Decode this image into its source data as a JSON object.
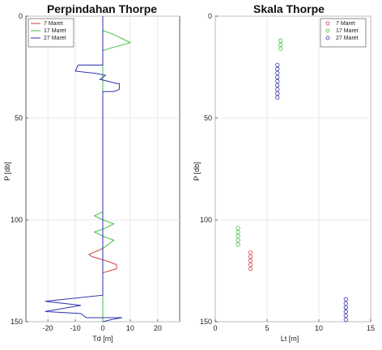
{
  "chart_data": [
    {
      "type": "line",
      "title": "Perpindahan Thorpe",
      "xlabel": "Td [m]",
      "ylabel": "P [db]",
      "xlim": [
        -28,
        28
      ],
      "ylim": [
        150,
        0
      ],
      "y_reversed": true,
      "grid": true,
      "legend_position": "top-left",
      "xticks": [
        -20,
        -10,
        0,
        10,
        20
      ],
      "yticks": [
        0,
        50,
        100,
        150
      ],
      "series": [
        {
          "name": "7 Maret",
          "color": "#d04040",
          "points": [
            [
              0,
              0
            ],
            [
              0,
              114
            ],
            [
              -5,
              117
            ],
            [
              -4,
              118
            ],
            [
              1,
              120
            ],
            [
              5,
              122
            ],
            [
              5,
              124
            ],
            [
              0,
              126
            ],
            [
              0,
              150
            ]
          ]
        },
        {
          "name": "17 Maret",
          "color": "#40c040",
          "points": [
            [
              0,
              0
            ],
            [
              0,
              7
            ],
            [
              4,
              9
            ],
            [
              10,
              13
            ],
            [
              2,
              16
            ],
            [
              0,
              17
            ],
            [
              0,
              96
            ],
            [
              -3,
              98
            ],
            [
              0,
              100
            ],
            [
              4,
              102
            ],
            [
              1,
              104
            ],
            [
              -3,
              106
            ],
            [
              0,
              108
            ],
            [
              4,
              110
            ],
            [
              0,
              114
            ],
            [
              0,
              150
            ]
          ]
        },
        {
          "name": "27 Maret",
          "color": "#3030b0",
          "points": [
            [
              0,
              0
            ],
            [
              0,
              24
            ],
            [
              -9,
              24
            ],
            [
              -10,
              27
            ],
            [
              -3,
              28
            ],
            [
              1,
              29
            ],
            [
              -1,
              31
            ],
            [
              2,
              32
            ],
            [
              5,
              33
            ],
            [
              6,
              33
            ],
            [
              6,
              36
            ],
            [
              4,
              37
            ],
            [
              0,
              37
            ],
            [
              0,
              137
            ],
            [
              -21,
              140
            ],
            [
              -8,
              142
            ],
            [
              -21,
              145
            ],
            [
              -8,
              146
            ],
            [
              -6,
              148
            ],
            [
              7,
              148
            ],
            [
              3,
              149
            ],
            [
              0,
              150
            ]
          ]
        }
      ]
    },
    {
      "type": "scatter",
      "title": "Skala Thorpe",
      "xlabel": "Lt [m]",
      "ylabel": "P [db]",
      "xlim": [
        0,
        15
      ],
      "ylim": [
        150,
        0
      ],
      "y_reversed": true,
      "grid": true,
      "legend_position": "top-right",
      "xticks": [
        0,
        5,
        10,
        15
      ],
      "yticks": [
        0,
        50,
        100,
        150
      ],
      "series": [
        {
          "name": "7 Maret",
          "color": "#d04040",
          "points": [
            [
              3.4,
              116
            ],
            [
              3.4,
              118
            ],
            [
              3.4,
              120
            ],
            [
              3.4,
              122
            ],
            [
              3.4,
              124
            ]
          ]
        },
        {
          "name": "17 Maret",
          "color": "#40c040",
          "points": [
            [
              6.3,
              12
            ],
            [
              6.3,
              14
            ],
            [
              6.3,
              16
            ],
            [
              2.2,
              104
            ],
            [
              2.2,
              106
            ],
            [
              2.2,
              108
            ],
            [
              2.2,
              110
            ],
            [
              2.2,
              112
            ]
          ]
        },
        {
          "name": "27 Maret",
          "color": "#3030b0",
          "points": [
            [
              6,
              24
            ],
            [
              6,
              26
            ],
            [
              6,
              28
            ],
            [
              6,
              30
            ],
            [
              6,
              32
            ],
            [
              6,
              34
            ],
            [
              6,
              36
            ],
            [
              6,
              38
            ],
            [
              6,
              40
            ],
            [
              12.6,
              139
            ],
            [
              12.6,
              141
            ],
            [
              12.6,
              143
            ],
            [
              12.6,
              145
            ],
            [
              12.6,
              147
            ],
            [
              12.6,
              149
            ]
          ]
        }
      ]
    }
  ]
}
